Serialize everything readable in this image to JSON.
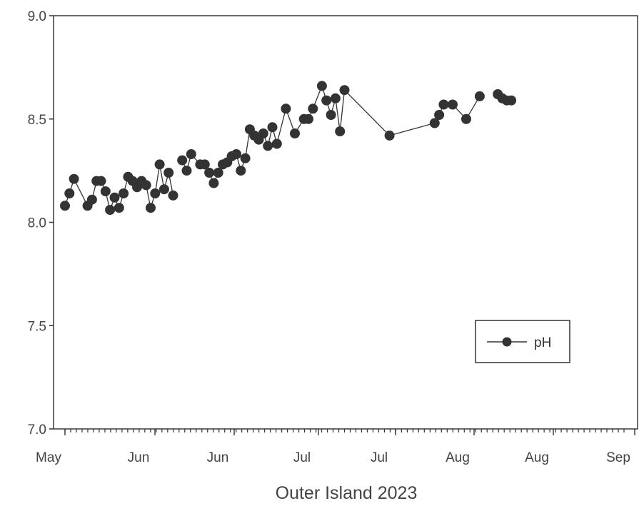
{
  "chart_data": {
    "type": "line",
    "title": "",
    "xlabel": "Outer Island 2023",
    "ylabel": "",
    "ylim": [
      7.0,
      9.0
    ],
    "y_ticks": [
      "7.0",
      "7.5",
      "8.0",
      "8.5",
      "9.0"
    ],
    "x_ticks": [
      "May",
      "Jun",
      "Jun",
      "Jul",
      "Jul",
      "Aug",
      "Aug",
      "Sep"
    ],
    "legend": {
      "position": "lower-right",
      "entries": [
        "pH"
      ]
    },
    "grid": false,
    "series": [
      {
        "name": "pH",
        "color": "#333333",
        "segments": [
          [
            {
              "x": "05-01",
              "y": 8.08
            },
            {
              "x": "05-02",
              "y": 8.14
            },
            {
              "x": "05-03",
              "y": 8.21
            },
            {
              "x": "05-06",
              "y": 8.08
            },
            {
              "x": "05-07",
              "y": 8.11
            },
            {
              "x": "05-08",
              "y": 8.2
            },
            {
              "x": "05-09",
              "y": 8.2
            },
            {
              "x": "05-10",
              "y": 8.15
            },
            {
              "x": "05-11",
              "y": 8.06
            },
            {
              "x": "05-12",
              "y": 8.12
            },
            {
              "x": "05-13",
              "y": 8.07
            },
            {
              "x": "05-14",
              "y": 8.14
            },
            {
              "x": "05-15",
              "y": 8.22
            },
            {
              "x": "05-16",
              "y": 8.2
            },
            {
              "x": "05-17",
              "y": 8.17
            },
            {
              "x": "05-18",
              "y": 8.2
            },
            {
              "x": "05-19",
              "y": 8.18
            },
            {
              "x": "05-20",
              "y": 8.07
            },
            {
              "x": "05-21",
              "y": 8.14
            },
            {
              "x": "05-22",
              "y": 8.28
            },
            {
              "x": "05-23",
              "y": 8.16
            },
            {
              "x": "05-24",
              "y": 8.24
            },
            {
              "x": "05-25",
              "y": 8.13
            }
          ],
          [
            {
              "x": "05-27",
              "y": 8.3
            },
            {
              "x": "05-28",
              "y": 8.25
            },
            {
              "x": "05-29",
              "y": 8.33
            },
            {
              "x": "05-31",
              "y": 8.28
            },
            {
              "x": "06-01",
              "y": 8.28
            },
            {
              "x": "06-02",
              "y": 8.24
            },
            {
              "x": "06-03",
              "y": 8.19
            },
            {
              "x": "06-04",
              "y": 8.24
            },
            {
              "x": "06-05",
              "y": 8.28
            },
            {
              "x": "06-06",
              "y": 8.29
            },
            {
              "x": "06-07",
              "y": 8.32
            },
            {
              "x": "06-08",
              "y": 8.33
            },
            {
              "x": "06-09",
              "y": 8.25
            },
            {
              "x": "06-10",
              "y": 8.31
            },
            {
              "x": "06-11",
              "y": 8.45
            },
            {
              "x": "06-12",
              "y": 8.42
            },
            {
              "x": "06-13",
              "y": 8.4
            },
            {
              "x": "06-14",
              "y": 8.43
            },
            {
              "x": "06-15",
              "y": 8.37
            },
            {
              "x": "06-16",
              "y": 8.46
            },
            {
              "x": "06-17",
              "y": 8.38
            },
            {
              "x": "06-19",
              "y": 8.55
            },
            {
              "x": "06-21",
              "y": 8.43
            },
            {
              "x": "06-23",
              "y": 8.5
            },
            {
              "x": "06-24",
              "y": 8.5
            },
            {
              "x": "06-25",
              "y": 8.55
            },
            {
              "x": "06-27",
              "y": 8.66
            },
            {
              "x": "06-28",
              "y": 8.59
            },
            {
              "x": "06-29",
              "y": 8.52
            },
            {
              "x": "06-30",
              "y": 8.6
            },
            {
              "x": "07-01",
              "y": 8.44
            },
            {
              "x": "07-02",
              "y": 8.64
            },
            {
              "x": "07-12",
              "y": 8.42
            },
            {
              "x": "07-22",
              "y": 8.48
            },
            {
              "x": "07-23",
              "y": 8.52
            },
            {
              "x": "07-24",
              "y": 8.57
            },
            {
              "x": "07-26",
              "y": 8.57
            },
            {
              "x": "07-29",
              "y": 8.5
            },
            {
              "x": "08-01",
              "y": 8.61
            }
          ],
          [
            {
              "x": "08-05",
              "y": 8.62
            },
            {
              "x": "08-06",
              "y": 8.6
            },
            {
              "x": "08-07",
              "y": 8.59
            },
            {
              "x": "08-08",
              "y": 8.59
            }
          ]
        ]
      }
    ]
  }
}
